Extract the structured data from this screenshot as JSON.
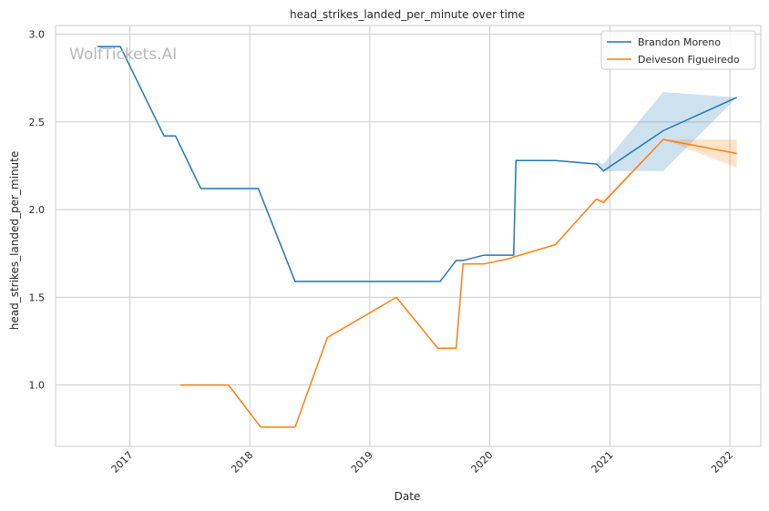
{
  "chart_data": {
    "type": "line",
    "title": "head_strikes_landed_per_minute over time",
    "xlabel": "Date",
    "ylabel": "head_strikes_landed_per_minute",
    "watermark": "WolfTickets.AI",
    "x_ticks": [
      "2017",
      "2018",
      "2019",
      "2020",
      "2021",
      "2022"
    ],
    "y_ticks": [
      "1.0",
      "1.5",
      "2.0",
      "2.5",
      "3.0"
    ],
    "xlim": [
      "2016-05-20",
      "2022-04-05"
    ],
    "ylim": [
      0.65,
      3.05
    ],
    "grid": true,
    "legend_position": "top-right",
    "series": [
      {
        "name": "Brandon Moreno",
        "color": "#1f77b4",
        "points": [
          [
            "2016-09-25",
            2.93
          ],
          [
            "2016-12-03",
            2.93
          ],
          [
            "2017-04-15",
            2.42
          ],
          [
            "2017-05-20",
            2.42
          ],
          [
            "2017-08-05",
            2.12
          ],
          [
            "2018-01-27",
            2.12
          ],
          [
            "2018-05-19",
            1.59
          ],
          [
            "2019-08-03",
            1.59
          ],
          [
            "2019-09-21",
            1.71
          ],
          [
            "2019-10-12",
            1.71
          ],
          [
            "2019-12-14",
            1.74
          ],
          [
            "2020-03-14",
            1.74
          ],
          [
            "2020-03-21",
            2.28
          ],
          [
            "2020-07-19",
            2.28
          ],
          [
            "2020-11-21",
            2.26
          ],
          [
            "2020-12-12",
            2.22
          ],
          [
            "2021-06-12",
            2.45
          ],
          [
            "2022-01-22",
            2.64
          ]
        ],
        "band": [
          [
            "2020-11-21",
            2.27,
            2.26
          ],
          [
            "2020-12-12",
            2.26,
            2.22
          ],
          [
            "2021-06-12",
            2.67,
            2.22
          ],
          [
            "2022-01-22",
            2.64,
            2.64
          ]
        ]
      },
      {
        "name": "Deiveson Figueiredo",
        "color": "#ff7f0e",
        "points": [
          [
            "2017-06-03",
            1.0
          ],
          [
            "2017-10-28",
            1.0
          ],
          [
            "2018-02-03",
            0.76
          ],
          [
            "2018-05-19",
            0.76
          ],
          [
            "2018-08-25",
            1.27
          ],
          [
            "2019-03-23",
            1.5
          ],
          [
            "2019-07-27",
            1.21
          ],
          [
            "2019-09-21",
            1.21
          ],
          [
            "2019-10-12",
            1.69
          ],
          [
            "2019-12-14",
            1.69
          ],
          [
            "2020-02-29",
            1.72
          ],
          [
            "2020-03-14",
            1.73
          ],
          [
            "2020-07-19",
            1.8
          ],
          [
            "2020-11-21",
            2.06
          ],
          [
            "2020-12-12",
            2.04
          ],
          [
            "2021-06-12",
            2.4
          ],
          [
            "2022-01-22",
            2.32
          ]
        ],
        "band": [
          [
            "2020-11-21",
            2.06,
            2.06
          ],
          [
            "2020-12-12",
            2.06,
            2.04
          ],
          [
            "2021-06-12",
            2.4,
            2.4
          ],
          [
            "2022-01-22",
            2.4,
            2.24
          ]
        ]
      }
    ]
  }
}
